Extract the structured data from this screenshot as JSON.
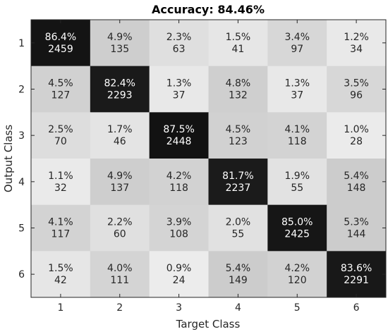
{
  "chart_data": {
    "type": "heatmap",
    "title": "Accuracy: 84.46%",
    "xlabel": "Target Class",
    "ylabel": "Output Class",
    "x_ticks": [
      "1",
      "2",
      "3",
      "4",
      "5",
      "6"
    ],
    "y_ticks": [
      "1",
      "2",
      "3",
      "4",
      "5",
      "6"
    ],
    "colormap": "grayscale (white = low, black = high)",
    "cells": [
      [
        {
          "pct": "86.4%",
          "count": 2459
        },
        {
          "pct": "4.9%",
          "count": 135
        },
        {
          "pct": "2.3%",
          "count": 63
        },
        {
          "pct": "1.5%",
          "count": 41
        },
        {
          "pct": "3.4%",
          "count": 97
        },
        {
          "pct": "1.2%",
          "count": 34
        }
      ],
      [
        {
          "pct": "4.5%",
          "count": 127
        },
        {
          "pct": "82.4%",
          "count": 2293
        },
        {
          "pct": "1.3%",
          "count": 37
        },
        {
          "pct": "4.8%",
          "count": 132
        },
        {
          "pct": "1.3%",
          "count": 37
        },
        {
          "pct": "3.5%",
          "count": 96
        }
      ],
      [
        {
          "pct": "2.5%",
          "count": 70
        },
        {
          "pct": "1.7%",
          "count": 46
        },
        {
          "pct": "87.5%",
          "count": 2448
        },
        {
          "pct": "4.5%",
          "count": 123
        },
        {
          "pct": "4.1%",
          "count": 118
        },
        {
          "pct": "1.0%",
          "count": 28
        }
      ],
      [
        {
          "pct": "1.1%",
          "count": 32
        },
        {
          "pct": "4.9%",
          "count": 137
        },
        {
          "pct": "4.2%",
          "count": 118
        },
        {
          "pct": "81.7%",
          "count": 2237
        },
        {
          "pct": "1.9%",
          "count": 55
        },
        {
          "pct": "5.4%",
          "count": 148
        }
      ],
      [
        {
          "pct": "4.1%",
          "count": 117
        },
        {
          "pct": "2.2%",
          "count": 60
        },
        {
          "pct": "3.9%",
          "count": 108
        },
        {
          "pct": "2.0%",
          "count": 55
        },
        {
          "pct": "85.0%",
          "count": 2425
        },
        {
          "pct": "5.3%",
          "count": 144
        }
      ],
      [
        {
          "pct": "1.5%",
          "count": 42
        },
        {
          "pct": "4.0%",
          "count": 111
        },
        {
          "pct": "0.9%",
          "count": 24
        },
        {
          "pct": "5.4%",
          "count": 149
        },
        {
          "pct": "4.2%",
          "count": 120
        },
        {
          "pct": "83.6%",
          "count": 2291
        }
      ]
    ]
  }
}
